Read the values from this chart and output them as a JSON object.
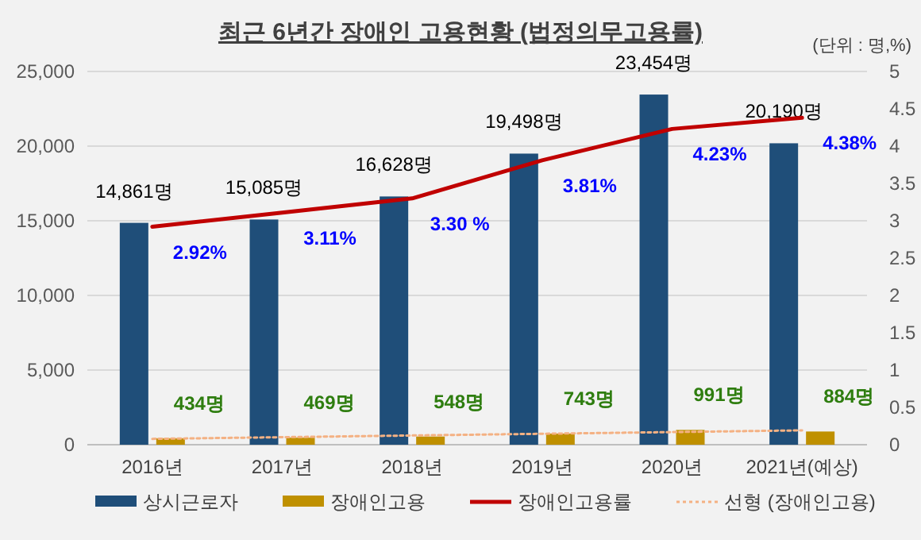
{
  "chart_data": {
    "type": "bar",
    "title": "최근 6년간 장애인 고용현황 (법정의무고용률)",
    "annotations": [
      "(단위 : 명,%)"
    ],
    "categories": [
      "2016년",
      "2017년",
      "2018년",
      "2019년",
      "2020년",
      "2021년(예상)"
    ],
    "series": [
      {
        "name": "상시근로자",
        "color": "#1f4e79",
        "values": [
          14861,
          15085,
          16628,
          19498,
          23454,
          20190
        ],
        "value_labels": [
          "14,861명",
          "15,085명",
          "16,628명",
          "19,498명",
          "23,454명",
          "20,190명"
        ]
      },
      {
        "name": "장애인고용",
        "color": "#bf9000",
        "values": [
          434,
          469,
          548,
          743,
          991,
          884
        ],
        "value_labels": [
          "434명",
          "469명",
          "548명",
          "743명",
          "991명",
          "884명"
        ]
      },
      {
        "name": "장애인고용률",
        "type": "line",
        "axis": "y2",
        "color": "#c00000",
        "values": [
          2.92,
          3.11,
          3.3,
          3.81,
          4.23,
          4.38
        ],
        "value_labels": [
          "2.92%",
          "3.11%",
          "3.30 %",
          "3.81%",
          "4.23%",
          "4.38%"
        ]
      },
      {
        "name": "선형 (장애인고용)",
        "type": "line",
        "line_style": "dotted",
        "color": "#f4b183",
        "x": [
          "2016년",
          "2021년(예상)"
        ],
        "values": [
          390,
          960
        ]
      }
    ],
    "ylim": [
      0,
      25000
    ],
    "yticks": [
      0,
      {
        "value": 5000,
        "label": "5,000"
      },
      {
        "value": 10000,
        "label": "10,000"
      },
      {
        "value": 15000,
        "label": "15,000"
      },
      {
        "value": 20000,
        "label": "20,000"
      },
      {
        "value": 25000,
        "label": "25,000"
      }
    ],
    "y2lim": [
      0,
      5
    ],
    "y2ticks": [
      0,
      0.5,
      1,
      1.5,
      2,
      2.5,
      3,
      3.5,
      4,
      4.5,
      5
    ],
    "grid": "y",
    "legend": "bottom"
  }
}
